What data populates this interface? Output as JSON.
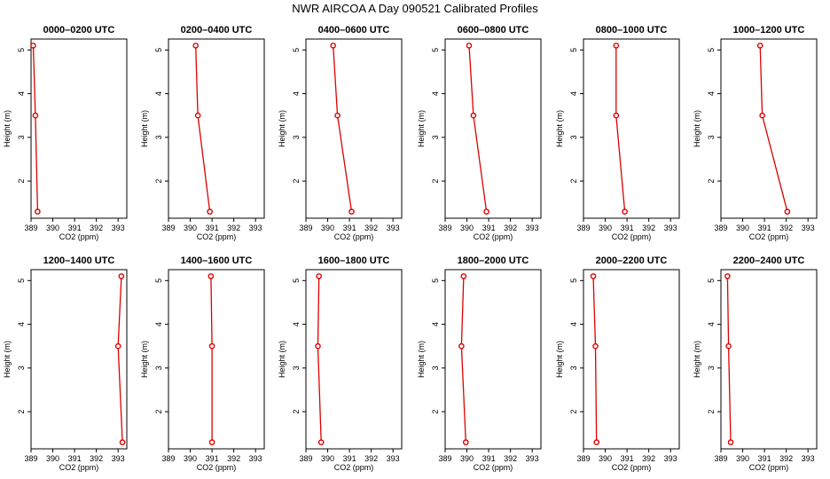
{
  "figure": {
    "title": "NWR AIRCOA A  Day 090521  Calibrated Profiles",
    "series_color": "#dd0000"
  },
  "chart_data": [
    {
      "type": "line",
      "title": "0000–0200 UTC",
      "xlabel": "CO2 (ppm)",
      "ylabel": "Height (m)",
      "xlim": [
        389,
        393.4
      ],
      "ylim": [
        1.15,
        5.25
      ],
      "xticks": [
        "389",
        "390",
        "391",
        "392",
        "393"
      ],
      "yticks": [
        "2",
        "3",
        "4",
        "5"
      ],
      "grid": false,
      "series": [
        {
          "x": [
            389.1,
            389.2,
            389.3
          ],
          "y": [
            5.1,
            3.5,
            1.3
          ]
        }
      ]
    },
    {
      "type": "line",
      "title": "0200–0400 UTC",
      "xlabel": "CO2 (ppm)",
      "ylabel": "Height (m)",
      "xlim": [
        389,
        393.4
      ],
      "ylim": [
        1.15,
        5.25
      ],
      "xticks": [
        "389",
        "390",
        "391",
        "392",
        "393"
      ],
      "yticks": [
        "2",
        "3",
        "4",
        "5"
      ],
      "grid": false,
      "series": [
        {
          "x": [
            390.25,
            390.35,
            390.9
          ],
          "y": [
            5.1,
            3.5,
            1.3
          ]
        }
      ]
    },
    {
      "type": "line",
      "title": "0400–0600 UTC",
      "xlabel": "CO2 (ppm)",
      "ylabel": "Height (m)",
      "xlim": [
        389,
        393.4
      ],
      "ylim": [
        1.15,
        5.25
      ],
      "xticks": [
        "389",
        "390",
        "391",
        "392",
        "393"
      ],
      "yticks": [
        "2",
        "3",
        "4",
        "5"
      ],
      "grid": false,
      "series": [
        {
          "x": [
            390.25,
            390.45,
            391.1
          ],
          "y": [
            5.1,
            3.5,
            1.3
          ]
        }
      ]
    },
    {
      "type": "line",
      "title": "0600–0800 UTC",
      "xlabel": "CO2 (ppm)",
      "ylabel": "Height (m)",
      "xlim": [
        389,
        393.4
      ],
      "ylim": [
        1.15,
        5.25
      ],
      "xticks": [
        "389",
        "390",
        "391",
        "392",
        "393"
      ],
      "yticks": [
        "2",
        "3",
        "4",
        "5"
      ],
      "grid": false,
      "series": [
        {
          "x": [
            390.1,
            390.3,
            390.9
          ],
          "y": [
            5.1,
            3.5,
            1.3
          ]
        }
      ]
    },
    {
      "type": "line",
      "title": "0800–1000 UTC",
      "xlabel": "CO2 (ppm)",
      "ylabel": "Height (m)",
      "xlim": [
        389,
        393.4
      ],
      "ylim": [
        1.15,
        5.25
      ],
      "xticks": [
        "389",
        "390",
        "391",
        "392",
        "393"
      ],
      "yticks": [
        "2",
        "3",
        "4",
        "5"
      ],
      "grid": false,
      "series": [
        {
          "x": [
            390.5,
            390.5,
            390.9
          ],
          "y": [
            5.1,
            3.5,
            1.3
          ]
        }
      ]
    },
    {
      "type": "line",
      "title": "1000–1200 UTC",
      "xlabel": "CO2 (ppm)",
      "ylabel": "Height (m)",
      "xlim": [
        389,
        393.4
      ],
      "ylim": [
        1.15,
        5.25
      ],
      "xticks": [
        "389",
        "390",
        "391",
        "392",
        "393"
      ],
      "yticks": [
        "2",
        "3",
        "4",
        "5"
      ],
      "grid": false,
      "series": [
        {
          "x": [
            390.8,
            390.9,
            392.05
          ],
          "y": [
            5.1,
            3.5,
            1.3
          ]
        }
      ]
    },
    {
      "type": "line",
      "title": "1200–1400 UTC",
      "xlabel": "CO2 (ppm)",
      "ylabel": "Height (m)",
      "xlim": [
        389,
        393.4
      ],
      "ylim": [
        1.15,
        5.25
      ],
      "xticks": [
        "389",
        "390",
        "391",
        "392",
        "393"
      ],
      "yticks": [
        "2",
        "3",
        "4",
        "5"
      ],
      "grid": false,
      "series": [
        {
          "x": [
            393.15,
            393.0,
            393.2
          ],
          "y": [
            5.1,
            3.5,
            1.3
          ]
        }
      ]
    },
    {
      "type": "line",
      "title": "1400–1600 UTC",
      "xlabel": "CO2 (ppm)",
      "ylabel": "Height (m)",
      "xlim": [
        389,
        393.4
      ],
      "ylim": [
        1.15,
        5.25
      ],
      "xticks": [
        "389",
        "390",
        "391",
        "392",
        "393"
      ],
      "yticks": [
        "2",
        "3",
        "4",
        "5"
      ],
      "grid": false,
      "series": [
        {
          "x": [
            390.95,
            391.0,
            391.0
          ],
          "y": [
            5.1,
            3.5,
            1.3
          ]
        }
      ]
    },
    {
      "type": "line",
      "title": "1600–1800 UTC",
      "xlabel": "CO2 (ppm)",
      "ylabel": "Height (m)",
      "xlim": [
        389,
        393.4
      ],
      "ylim": [
        1.15,
        5.25
      ],
      "xticks": [
        "389",
        "390",
        "391",
        "392",
        "393"
      ],
      "yticks": [
        "2",
        "3",
        "4",
        "5"
      ],
      "grid": false,
      "series": [
        {
          "x": [
            389.6,
            389.55,
            389.7
          ],
          "y": [
            5.1,
            3.5,
            1.3
          ]
        }
      ]
    },
    {
      "type": "line",
      "title": "1800–2000 UTC",
      "xlabel": "CO2 (ppm)",
      "ylabel": "Height (m)",
      "xlim": [
        389,
        393.4
      ],
      "ylim": [
        1.15,
        5.25
      ],
      "xticks": [
        "389",
        "390",
        "391",
        "392",
        "393"
      ],
      "yticks": [
        "2",
        "3",
        "4",
        "5"
      ],
      "grid": false,
      "series": [
        {
          "x": [
            389.85,
            389.75,
            389.95
          ],
          "y": [
            5.1,
            3.5,
            1.3
          ]
        }
      ]
    },
    {
      "type": "line",
      "title": "2000–2200 UTC",
      "xlabel": "CO2 (ppm)",
      "ylabel": "Height (m)",
      "xlim": [
        389,
        393.4
      ],
      "ylim": [
        1.15,
        5.25
      ],
      "xticks": [
        "389",
        "390",
        "391",
        "392",
        "393"
      ],
      "yticks": [
        "2",
        "3",
        "4",
        "5"
      ],
      "grid": false,
      "series": [
        {
          "x": [
            389.45,
            389.55,
            389.6
          ],
          "y": [
            5.1,
            3.5,
            1.3
          ]
        }
      ]
    },
    {
      "type": "line",
      "title": "2200–2400 UTC",
      "xlabel": "CO2 (ppm)",
      "ylabel": "Height (m)",
      "xlim": [
        389,
        393.4
      ],
      "ylim": [
        1.15,
        5.25
      ],
      "xticks": [
        "389",
        "390",
        "391",
        "392",
        "393"
      ],
      "yticks": [
        "2",
        "3",
        "4",
        "5"
      ],
      "grid": false,
      "series": [
        {
          "x": [
            389.3,
            389.35,
            389.45
          ],
          "y": [
            5.1,
            3.5,
            1.3
          ]
        }
      ]
    }
  ]
}
